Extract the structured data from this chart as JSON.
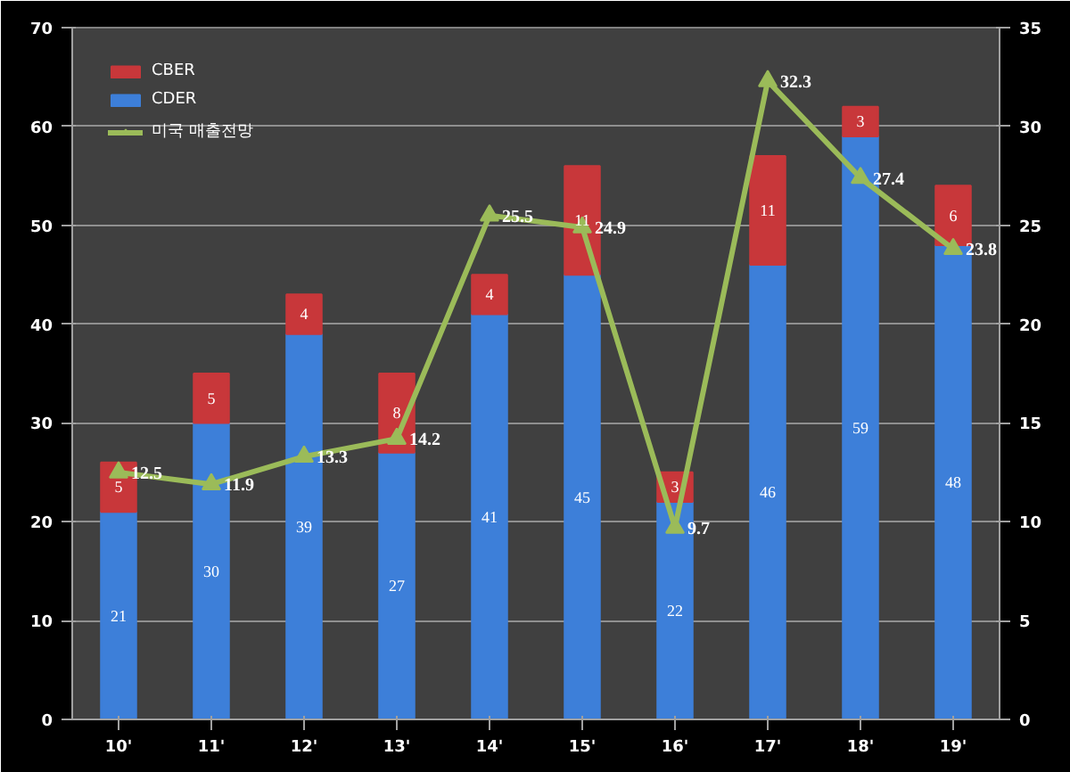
{
  "chart_data": {
    "type": "bar",
    "stacked": true,
    "categories": [
      "10'",
      "11'",
      "12'",
      "13'",
      "14'",
      "15'",
      "16'",
      "17'",
      "18'",
      "19'"
    ],
    "series": [
      {
        "name": "CDER",
        "color": "#3d7fd9",
        "values": [
          21,
          30,
          39,
          27,
          41,
          45,
          22,
          46,
          59,
          48
        ]
      },
      {
        "name": "CBER",
        "color": "#c8373a",
        "values": [
          5,
          5,
          4,
          8,
          4,
          11,
          3,
          11,
          3,
          6
        ]
      },
      {
        "name": "미국 매출전망",
        "type": "line",
        "axis": "y2",
        "color": "#9bbb59",
        "marker": "triangle",
        "values": [
          12.5,
          11.9,
          13.3,
          14.2,
          25.5,
          24.9,
          9.7,
          32.3,
          27.4,
          23.8
        ]
      }
    ],
    "ylim": [
      0,
      70
    ],
    "yticks": [
      0,
      10,
      20,
      30,
      40,
      50,
      60,
      70
    ],
    "y2lim": [
      0,
      35
    ],
    "y2ticks": [
      0,
      5,
      10,
      15,
      20,
      25,
      30,
      35
    ],
    "grid": "y",
    "legend": "top left",
    "data_labels": true
  }
}
